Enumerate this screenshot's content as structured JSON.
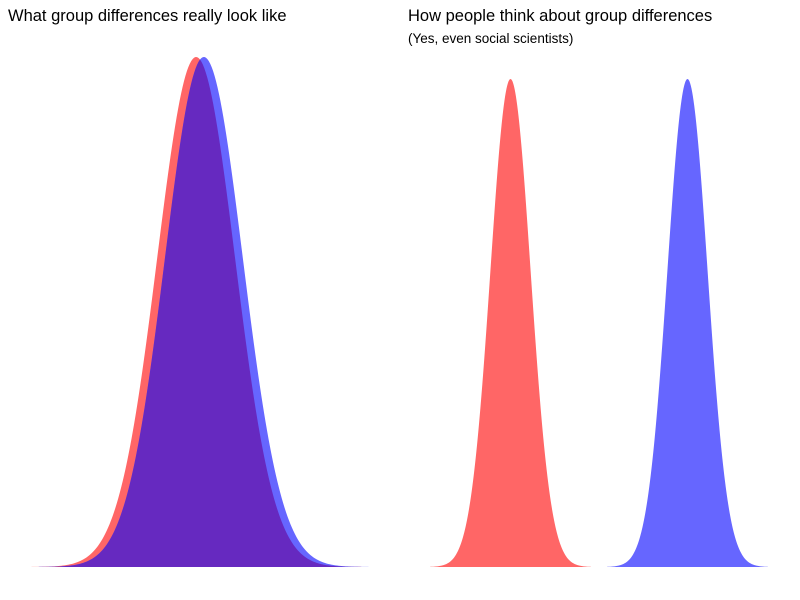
{
  "chart_data": [
    {
      "type": "area",
      "title": "What group differences really look like",
      "subtitle": "",
      "xlabel": "",
      "ylabel": "",
      "grid": false,
      "axes_visible": false,
      "series": [
        {
          "color": "#ff6666",
          "mean": -0.1,
          "sd": 1.0
        },
        {
          "color": "#6666ff",
          "mean": 0.1,
          "sd": 1.0
        }
      ],
      "overlap_color": "#6629c0",
      "xlim": [
        -4.5,
        4.5
      ]
    },
    {
      "type": "area",
      "title": "How people think about group differences",
      "subtitle": "(Yes, even social scientists)",
      "xlabel": "",
      "ylabel": "",
      "grid": false,
      "axes_visible": false,
      "series": [
        {
          "color": "#ff6666",
          "mean": -2.2,
          "sd": 0.5
        },
        {
          "color": "#6666ff",
          "mean": 2.2,
          "sd": 0.5
        }
      ],
      "xlim": [
        -4.5,
        4.5
      ]
    }
  ]
}
